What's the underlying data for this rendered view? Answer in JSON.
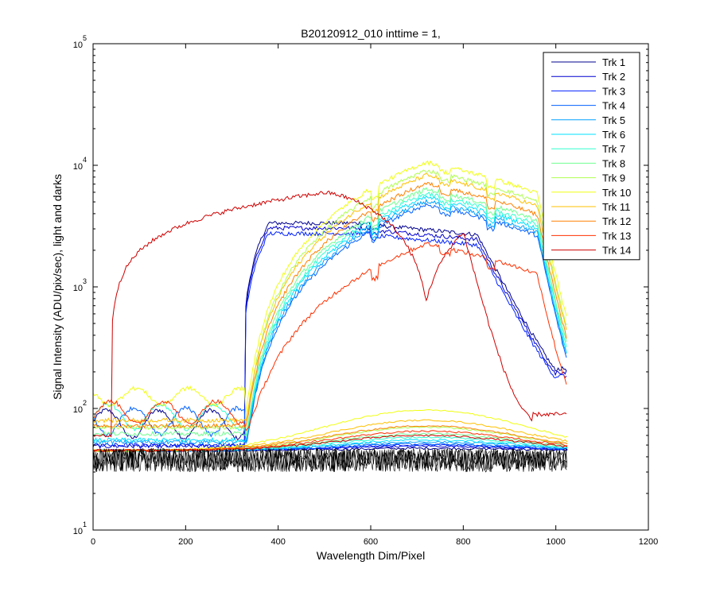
{
  "chart_data": {
    "type": "line",
    "title": "B20120912_010 inttime = 1,",
    "xlabel": "Wavelength Dim/Pixel",
    "ylabel": "Signal Intensity (ADU/pix/sec), light and darks",
    "xlim": [
      0,
      1200
    ],
    "ylim": [
      10,
      100000
    ],
    "yscale": "log",
    "x_ticks": [
      "0",
      "200",
      "400",
      "600",
      "800",
      "1000",
      "1200"
    ],
    "y_ticks": [
      {
        "base": "10",
        "exp": "1"
      },
      {
        "base": "10",
        "exp": "2"
      },
      {
        "base": "10",
        "exp": "3"
      },
      {
        "base": "10",
        "exp": "4"
      },
      {
        "base": "10",
        "exp": "5"
      }
    ],
    "grid": false,
    "legend_position": "top-right",
    "series": [
      {
        "name": "Trk 1",
        "color": "#00008F",
        "family": "A",
        "peak": 3300,
        "dark": 47
      },
      {
        "name": "Trk 2",
        "color": "#0000CF",
        "family": "A",
        "peak": 3000,
        "dark": 49
      },
      {
        "name": "Trk 3",
        "color": "#0020FF",
        "family": "A",
        "peak": 2700,
        "dark": 50
      },
      {
        "name": "Trk 4",
        "color": "#0060FF",
        "family": "B",
        "peak": 4700,
        "dark": 51
      },
      {
        "name": "Trk 5",
        "color": "#00A0FF",
        "family": "B",
        "peak": 5000,
        "dark": 53
      },
      {
        "name": "Trk 6",
        "color": "#00E0FF",
        "family": "B",
        "peak": 5400,
        "dark": 55
      },
      {
        "name": "Trk 7",
        "color": "#30FFCF",
        "family": "B",
        "peak": 5800,
        "dark": 58
      },
      {
        "name": "Trk 8",
        "color": "#70FF8F",
        "family": "B",
        "peak": 6300,
        "dark": 62
      },
      {
        "name": "Trk 9",
        "color": "#B0FF50",
        "family": "C",
        "peak": 9000,
        "dark": 70
      },
      {
        "name": "Trk 10",
        "color": "#F0FF10",
        "family": "C",
        "peak": 10500,
        "dark": 97
      },
      {
        "name": "Trk 11",
        "color": "#FFC000",
        "family": "C",
        "peak": 8200,
        "dark": 80
      },
      {
        "name": "Trk 12",
        "color": "#FF8000",
        "family": "C",
        "peak": 7000,
        "dark": 72
      },
      {
        "name": "Trk 13",
        "color": "#FF3000",
        "family": "D",
        "peak": 2200,
        "dark": 65
      },
      {
        "name": "Trk 14",
        "color": "#CF0000",
        "family": "E",
        "peak": 5900,
        "dark": 60
      }
    ],
    "dark_frames": {
      "color": "#000000",
      "min": 30,
      "max": 47
    }
  }
}
